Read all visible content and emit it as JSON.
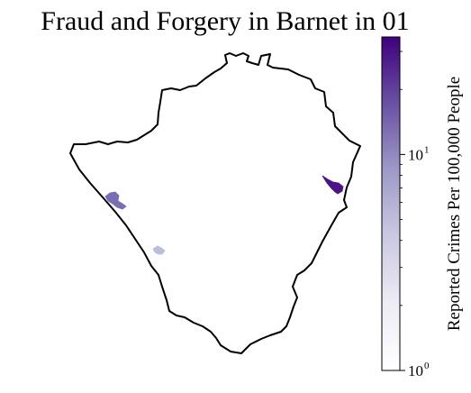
{
  "title": "Fraud and Forgery in Barnet in 01",
  "colorbar": {
    "label": "Reported Crimes Per 100,000 People",
    "scale": "log",
    "range": [
      1,
      35
    ],
    "ticks": [
      {
        "value": 1,
        "base": "10",
        "exponent": "0"
      },
      {
        "value": 10,
        "base": "10",
        "exponent": "1"
      }
    ],
    "colormap": "Purples",
    "color_low": "#fcfbfd",
    "color_high": "#3f007d"
  },
  "map": {
    "borough": "Barnet",
    "outline_color": "#000000",
    "areas": [
      {
        "id": "area-east",
        "value": 30,
        "color": "#4a1486"
      },
      {
        "id": "area-west",
        "value": 7,
        "color": "#7a6db3"
      },
      {
        "id": "area-south",
        "value": 3,
        "color": "#bcbddc"
      }
    ]
  }
}
